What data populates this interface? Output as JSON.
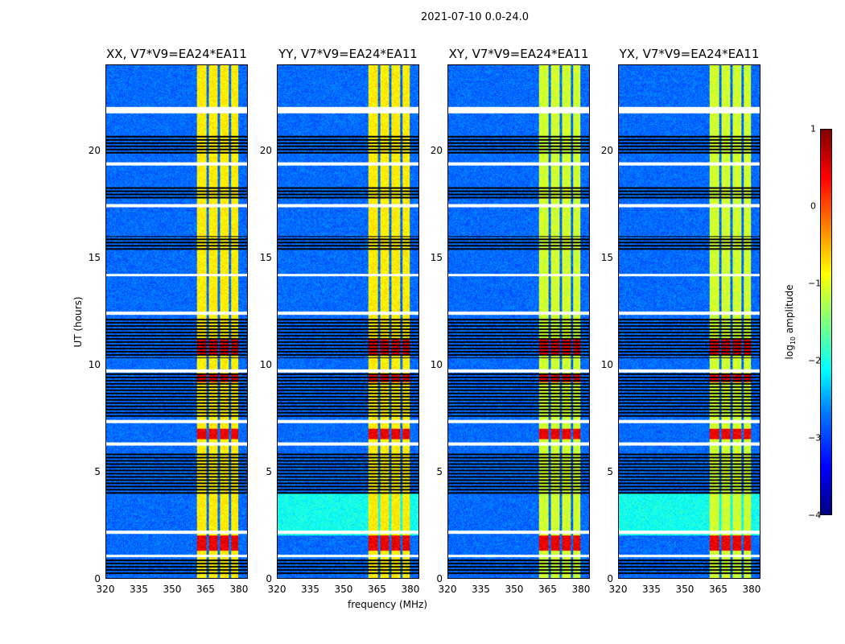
{
  "title": "2021-07-10 0.0-24.0",
  "chart_data": {
    "type": "heatmap",
    "panels": [
      {
        "title": "XX, V7*V9=EA24*EA11"
      },
      {
        "title": "YY, V7*V9=EA24*EA11"
      },
      {
        "title": "XY, V7*V9=EA24*EA11"
      },
      {
        "title": "YX, V7*V9=EA24*EA11"
      }
    ],
    "xlabel": "frequency (MHz)",
    "ylabel": "UT (hours)",
    "xlim": [
      320,
      384
    ],
    "ylim": [
      0,
      24
    ],
    "xticks": [
      "320",
      "335",
      "350",
      "365",
      "380"
    ],
    "xtick_values": [
      320,
      335,
      350,
      365,
      380
    ],
    "yticks": [
      "0",
      "5",
      "10",
      "15",
      "20"
    ],
    "ytick_values": [
      0,
      5,
      10,
      15,
      20
    ],
    "colorbar": {
      "label_prefix": "log",
      "label_sub": "10",
      "label_suffix": " amplitude",
      "range": [
        -4,
        1
      ],
      "ticks": [
        "1",
        "0",
        "−1",
        "−2",
        "−3",
        "−4"
      ],
      "tick_values": [
        1,
        0,
        -1,
        -2,
        -3,
        -4
      ],
      "colormap": "jet"
    },
    "strong_signal_subbands_mhz": [
      [
        361,
        365.5
      ],
      [
        366.5,
        370.5
      ],
      [
        371.5,
        375.5
      ],
      [
        376.5,
        380
      ]
    ],
    "flagged_hours": [
      1.05,
      2.15,
      6.3,
      7.35,
      9.7,
      12.4,
      14.2,
      17.45,
      19.4,
      21.85,
      22.0
    ],
    "low_amplitude_hours": [
      [
        0.2,
        0.9
      ],
      [
        3.9,
        5.9
      ],
      [
        7.5,
        9.6
      ],
      [
        10.3,
        12.2
      ],
      [
        15.3,
        16.0
      ],
      [
        17.7,
        18.3
      ],
      [
        19.8,
        20.7
      ]
    ],
    "high_amplitude_hours": [
      [
        1.3,
        2.0
      ],
      [
        6.5,
        7.0
      ],
      [
        9.2,
        9.6
      ],
      [
        10.5,
        11.2
      ]
    ]
  }
}
